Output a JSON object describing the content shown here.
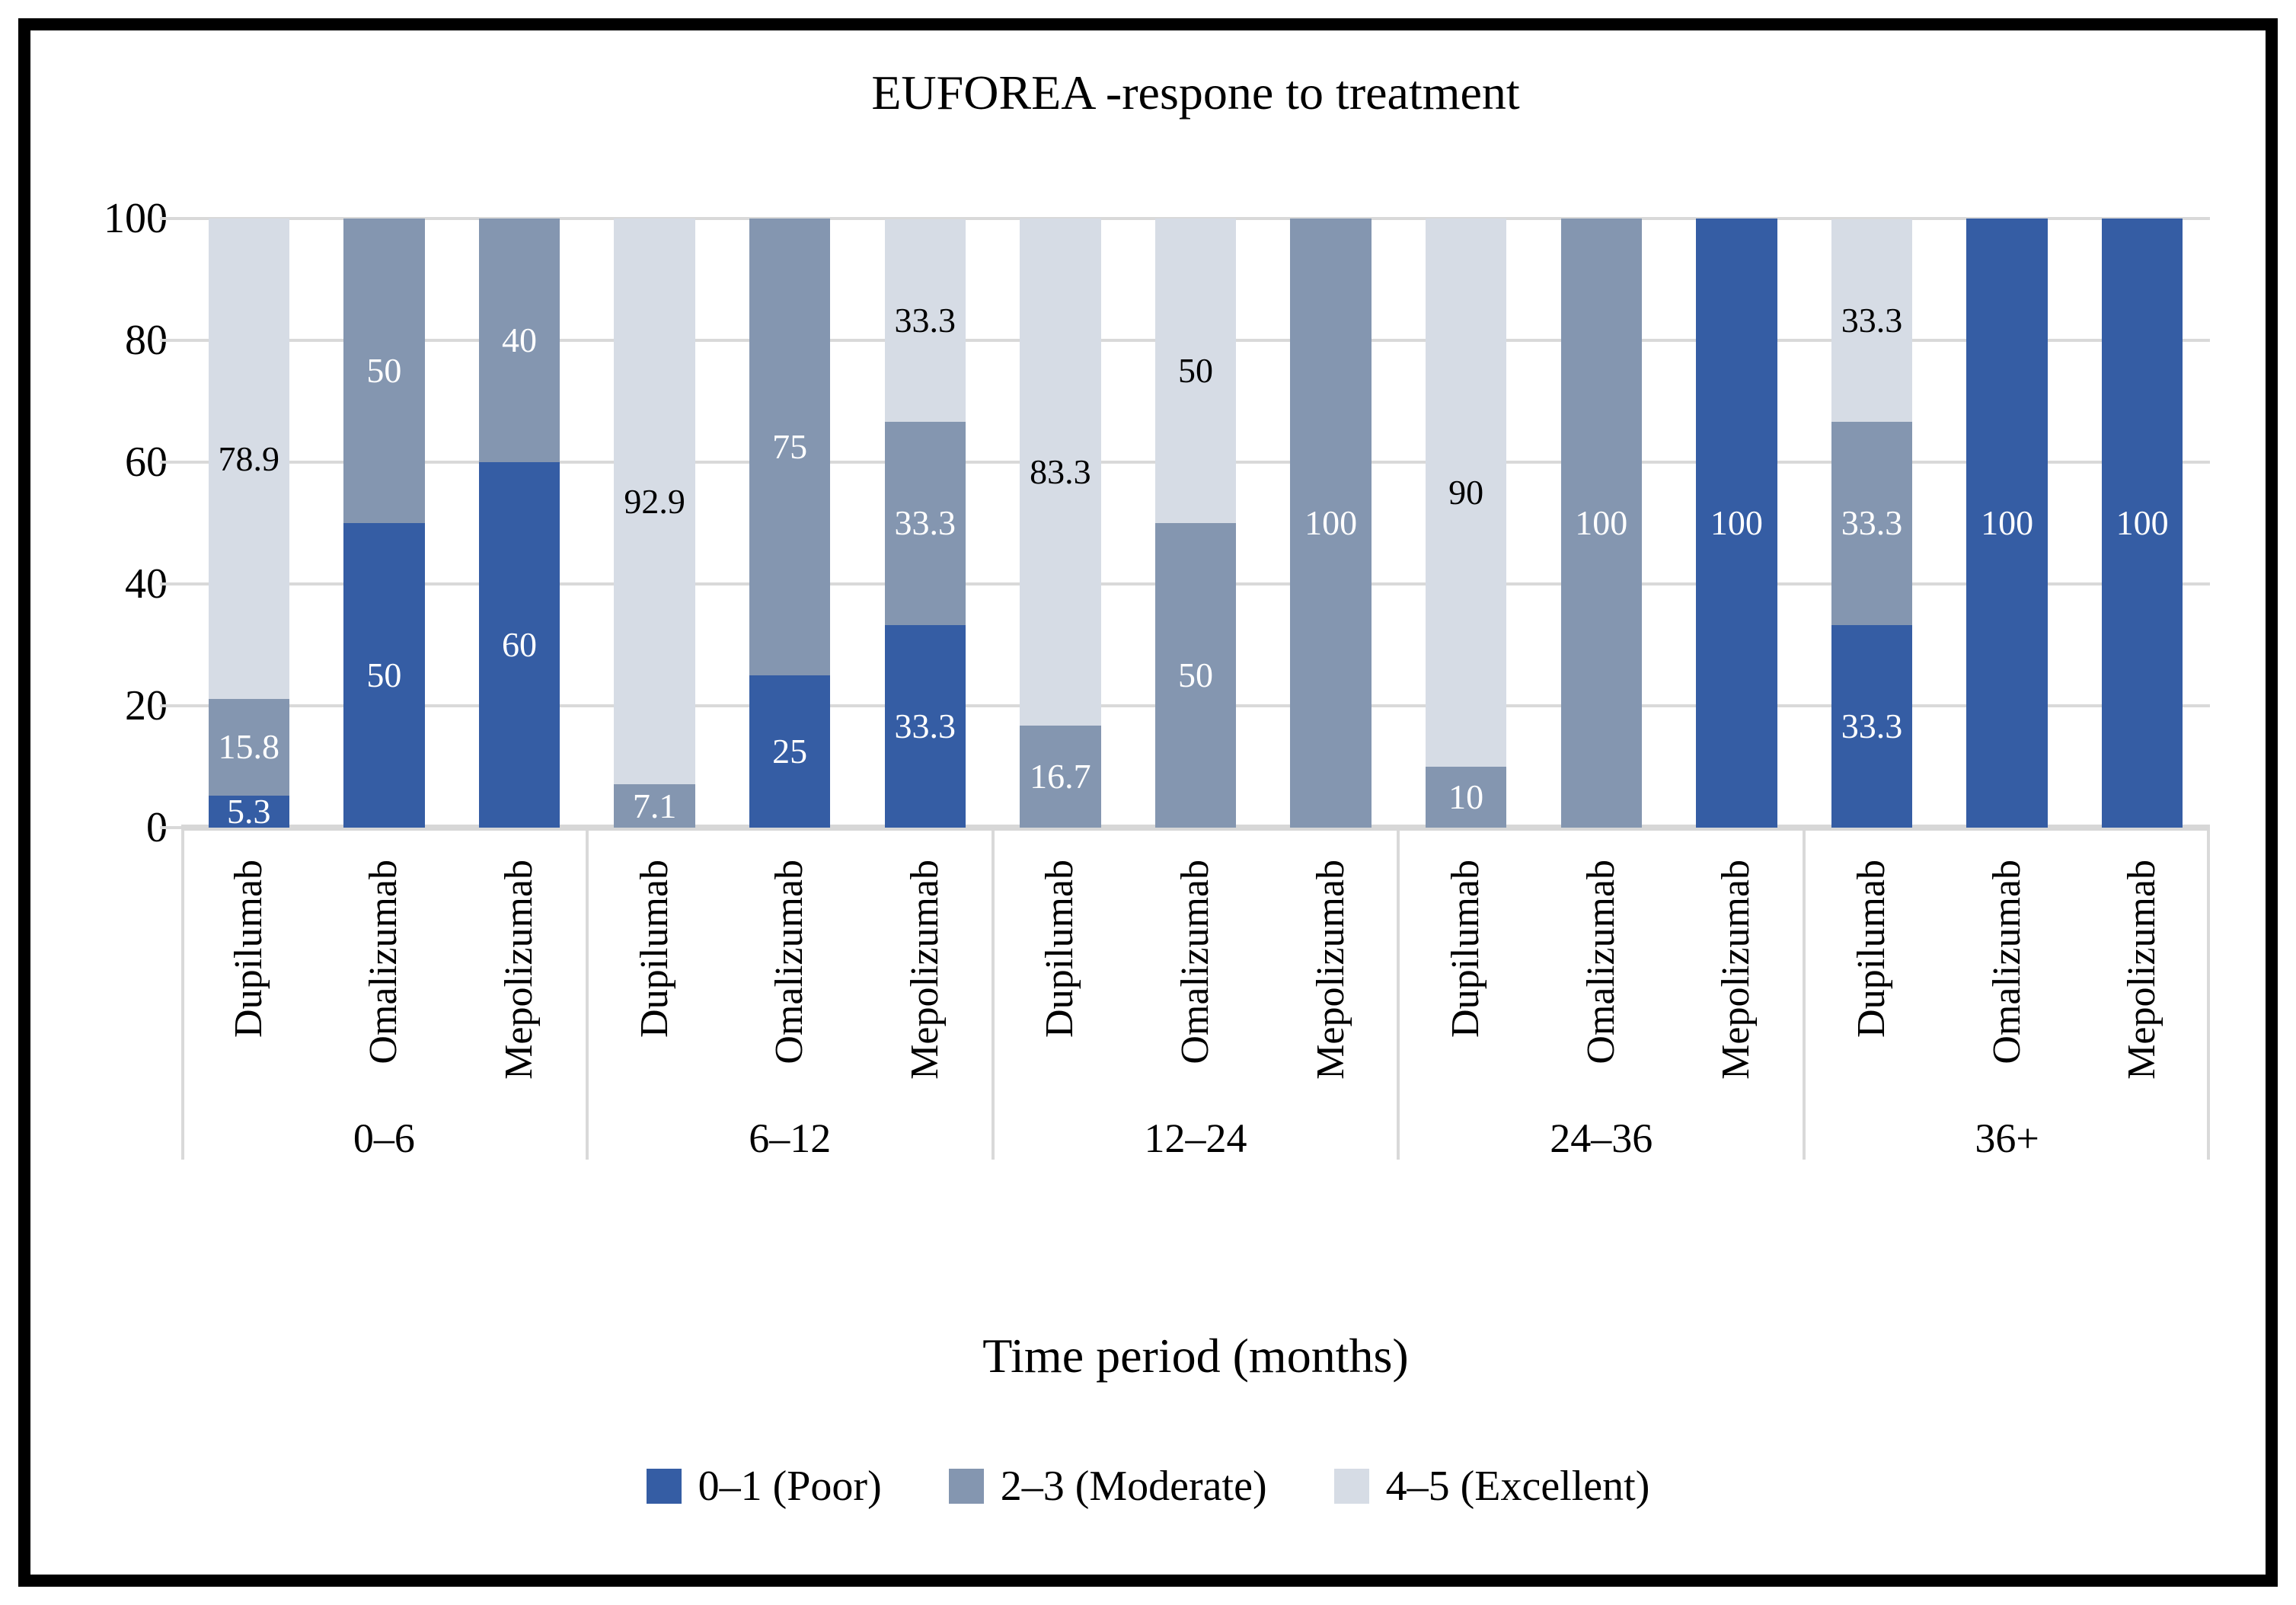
{
  "title": "EUFOREA -respone to treatment",
  "chart_data": {
    "type": "bar",
    "stacked": true,
    "units": "percent",
    "title": "EUFOREA -respone to treatment",
    "xlabel": "Time period (months)",
    "ylabel": "",
    "ylim": [
      0,
      100
    ],
    "yticks": [
      0,
      20,
      40,
      60,
      80,
      100
    ],
    "grid": true,
    "legend_position": "bottom",
    "series": [
      {
        "key": "poor",
        "name": "0–1 (Poor)",
        "color": "#355da4",
        "label_color": "#ffffff"
      },
      {
        "key": "moderate",
        "name": "2–3 (Moderate)",
        "color": "#8496b0",
        "label_color": "#ffffff"
      },
      {
        "key": "excellent",
        "name": "4–5 (Excellent)",
        "color": "#d6dce5",
        "label_color": "#000000"
      }
    ],
    "groups": [
      {
        "period": "0–6",
        "bars": [
          {
            "drug": "Dupilumab",
            "segments": [
              {
                "series": "poor",
                "value": 5.3,
                "label": "5.3"
              },
              {
                "series": "moderate",
                "value": 15.8,
                "label": "15.8"
              },
              {
                "series": "excellent",
                "value": 78.9,
                "label": "78.9"
              }
            ]
          },
          {
            "drug": "Omalizumab",
            "segments": [
              {
                "series": "poor",
                "value": 50,
                "label": "50"
              },
              {
                "series": "moderate",
                "value": 50,
                "label": "50"
              }
            ]
          },
          {
            "drug": "Mepolizumab",
            "segments": [
              {
                "series": "poor",
                "value": 60,
                "label": "60"
              },
              {
                "series": "moderate",
                "value": 40,
                "label": "40"
              }
            ]
          }
        ]
      },
      {
        "period": "6–12",
        "bars": [
          {
            "drug": "Dupilumab",
            "segments": [
              {
                "series": "moderate",
                "value": 7.1,
                "label": "7.1"
              },
              {
                "series": "excellent",
                "value": 92.9,
                "label": "92.9"
              }
            ]
          },
          {
            "drug": "Omalizumab",
            "segments": [
              {
                "series": "poor",
                "value": 25,
                "label": "25"
              },
              {
                "series": "moderate",
                "value": 75,
                "label": "75"
              }
            ]
          },
          {
            "drug": "Mepolizumab",
            "segments": [
              {
                "series": "poor",
                "value": 33.3,
                "label": "33.3"
              },
              {
                "series": "moderate",
                "value": 33.3,
                "label": "33.3"
              },
              {
                "series": "excellent",
                "value": 33.3,
                "label": "33.3"
              }
            ]
          }
        ]
      },
      {
        "period": "12–24",
        "bars": [
          {
            "drug": "Dupilumab",
            "segments": [
              {
                "series": "moderate",
                "value": 16.7,
                "label": "16.7"
              },
              {
                "series": "excellent",
                "value": 83.3,
                "label": "83.3"
              }
            ]
          },
          {
            "drug": "Omalizumab",
            "segments": [
              {
                "series": "moderate",
                "value": 50,
                "label": "50"
              },
              {
                "series": "excellent",
                "value": 50,
                "label": "50"
              }
            ]
          },
          {
            "drug": "Mepolizumab",
            "segments": [
              {
                "series": "moderate",
                "value": 100,
                "label": "100"
              }
            ]
          }
        ]
      },
      {
        "period": "24–36",
        "bars": [
          {
            "drug": "Dupilumab",
            "segments": [
              {
                "series": "moderate",
                "value": 10,
                "label": "10"
              },
              {
                "series": "excellent",
                "value": 90,
                "label": "90"
              }
            ]
          },
          {
            "drug": "Omalizumab",
            "segments": [
              {
                "series": "moderate",
                "value": 100,
                "label": "100"
              }
            ]
          },
          {
            "drug": "Mepolizumab",
            "segments": [
              {
                "series": "poor",
                "value": 100,
                "label": "100"
              }
            ]
          }
        ]
      },
      {
        "period": "36+",
        "bars": [
          {
            "drug": "Dupilumab",
            "segments": [
              {
                "series": "poor",
                "value": 33.3,
                "label": "33.3"
              },
              {
                "series": "moderate",
                "value": 33.3,
                "label": "33.3"
              },
              {
                "series": "excellent",
                "value": 33.3,
                "label": "33.3"
              }
            ]
          },
          {
            "drug": "Omalizumab",
            "segments": [
              {
                "series": "poor",
                "value": 100,
                "label": "100"
              }
            ]
          },
          {
            "drug": "Mepolizumab",
            "segments": [
              {
                "series": "poor",
                "value": 100,
                "label": "100"
              }
            ]
          }
        ]
      }
    ]
  }
}
